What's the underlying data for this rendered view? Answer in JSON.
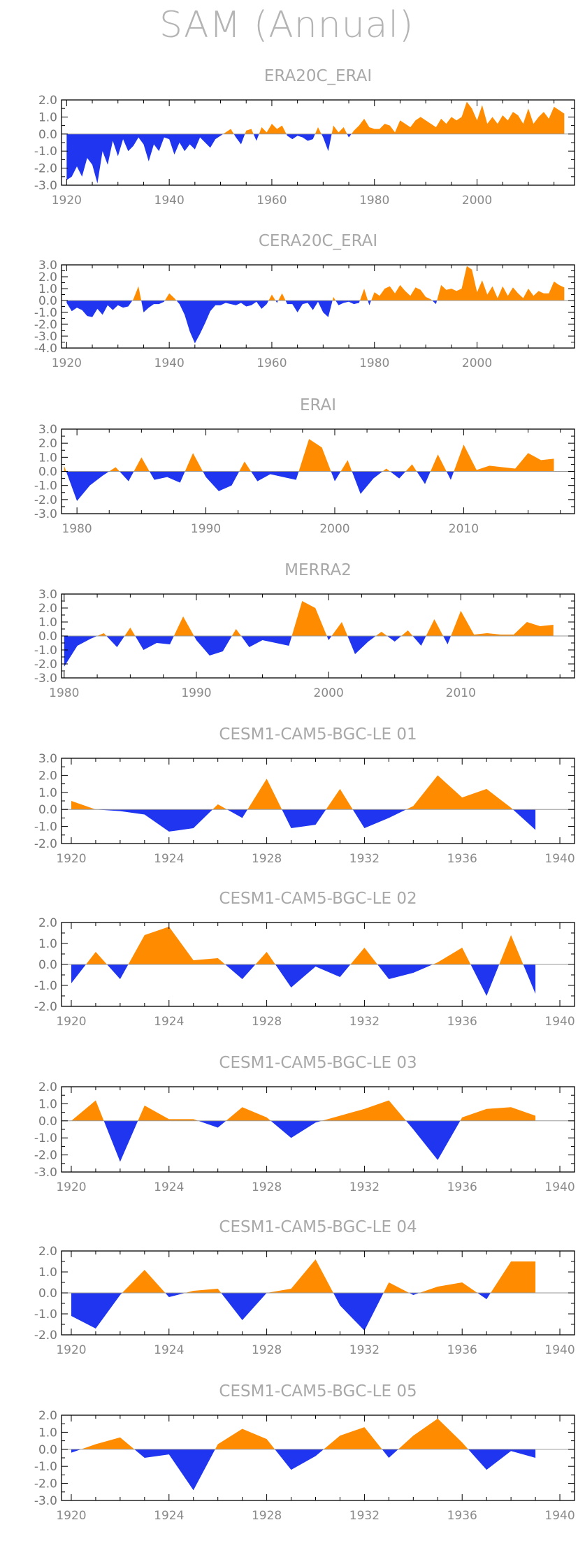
{
  "title": "SAM (Annual)",
  "colors": {
    "positive": "#ff8c00",
    "negative": "#1f35f0",
    "frame": "#000000",
    "zero_line": "#9a9a9a",
    "text": "#a8a8a8"
  },
  "chart_data": [
    {
      "type": "area",
      "title": "ERA20C_ERAI",
      "xlim": [
        1919,
        2019
      ],
      "ylim": [
        -3,
        2
      ],
      "yticks": [
        2.0,
        1.0,
        0.0,
        -1.0,
        -2.0,
        -3.0
      ],
      "ytick_labels": [
        "2.0",
        "1.0",
        "0.0",
        "-1.0",
        "-2.0",
        "-3.0"
      ],
      "xticks": [
        1920,
        1940,
        1960,
        1980,
        2000
      ],
      "xtick_labels": [
        "1920",
        "1940",
        "1960",
        "1980",
        "2000"
      ],
      "x": [
        1920,
        1921,
        1922,
        1923,
        1924,
        1925,
        1926,
        1927,
        1928,
        1929,
        1930,
        1931,
        1932,
        1933,
        1934,
        1935,
        1936,
        1937,
        1938,
        1939,
        1940,
        1941,
        1942,
        1943,
        1944,
        1945,
        1946,
        1947,
        1948,
        1949,
        1950,
        1951,
        1952,
        1953,
        1954,
        1955,
        1956,
        1957,
        1958,
        1959,
        1960,
        1961,
        1962,
        1963,
        1964,
        1965,
        1966,
        1967,
        1968,
        1969,
        1970,
        1971,
        1972,
        1973,
        1974,
        1975,
        1976,
        1977,
        1978,
        1979,
        1980,
        1981,
        1982,
        1983,
        1984,
        1985,
        1986,
        1987,
        1988,
        1989,
        1990,
        1991,
        1992,
        1993,
        1994,
        1995,
        1996,
        1997,
        1998,
        1999,
        2000,
        2001,
        2002,
        2003,
        2004,
        2005,
        2006,
        2007,
        2008,
        2009,
        2010,
        2011,
        2012,
        2013,
        2014,
        2015,
        2016,
        2017
      ],
      "y": [
        -2.7,
        -2.5,
        -1.9,
        -2.5,
        -1.4,
        -1.8,
        -2.9,
        -1.0,
        -1.8,
        -0.4,
        -1.3,
        -0.3,
        -1.0,
        -0.7,
        -0.2,
        -0.6,
        -1.6,
        -0.6,
        -1.0,
        -0.2,
        -0.3,
        -1.2,
        -0.5,
        -1.0,
        -0.6,
        -0.9,
        -0.2,
        -0.5,
        -0.8,
        -0.3,
        -0.1,
        0.1,
        0.3,
        -0.2,
        -0.6,
        0.2,
        0.3,
        -0.4,
        0.4,
        0.1,
        0.6,
        0.3,
        0.5,
        -0.1,
        -0.3,
        -0.1,
        -0.2,
        -0.4,
        -0.3,
        0.4,
        -0.2,
        -1.0,
        0.5,
        0.1,
        0.4,
        -0.2,
        0.2,
        0.5,
        0.9,
        0.4,
        0.3,
        0.3,
        0.6,
        0.5,
        0.1,
        0.8,
        0.6,
        0.4,
        0.8,
        1.0,
        0.8,
        0.6,
        0.4,
        0.9,
        0.6,
        1.0,
        0.8,
        1.0,
        1.9,
        1.5,
        0.8,
        1.7,
        0.6,
        1.0,
        0.6,
        1.1,
        0.8,
        1.3,
        1.1,
        0.6,
        1.5,
        0.6,
        1.0,
        1.3,
        0.9,
        1.6,
        1.4,
        1.2
      ]
    },
    {
      "type": "area",
      "title": "CERA20C_ERAI",
      "xlim": [
        1919,
        2019
      ],
      "ylim": [
        -4,
        3
      ],
      "yticks": [
        3.0,
        2.0,
        1.0,
        0.0,
        -1.0,
        -2.0,
        -3.0,
        -4.0
      ],
      "ytick_labels": [
        "3.0",
        "2.0",
        "1.0",
        "0.0",
        "-1.0",
        "-2.0",
        "-3.0",
        "-4.0"
      ],
      "xticks": [
        1920,
        1940,
        1960,
        1980,
        2000
      ],
      "xtick_labels": [
        "1920",
        "1940",
        "1960",
        "1980",
        "2000"
      ],
      "x": [
        1920,
        1921,
        1922,
        1923,
        1924,
        1925,
        1926,
        1927,
        1928,
        1929,
        1930,
        1931,
        1932,
        1933,
        1934,
        1935,
        1936,
        1937,
        1938,
        1939,
        1940,
        1941,
        1942,
        1943,
        1944,
        1945,
        1946,
        1947,
        1948,
        1949,
        1950,
        1951,
        1952,
        1953,
        1954,
        1955,
        1956,
        1957,
        1958,
        1959,
        1960,
        1961,
        1962,
        1963,
        1964,
        1965,
        1966,
        1967,
        1968,
        1969,
        1970,
        1971,
        1972,
        1973,
        1974,
        1975,
        1976,
        1977,
        1978,
        1979,
        1980,
        1981,
        1982,
        1983,
        1984,
        1985,
        1986,
        1987,
        1988,
        1989,
        1990,
        1991,
        1992,
        1993,
        1994,
        1995,
        1996,
        1997,
        1998,
        1999,
        2000,
        2001,
        2002,
        2003,
        2004,
        2005,
        2006,
        2007,
        2008,
        2009,
        2010,
        2011,
        2012,
        2013,
        2014,
        2015,
        2016,
        2017
      ],
      "y": [
        -0.2,
        -0.9,
        -0.6,
        -0.8,
        -1.3,
        -1.4,
        -0.7,
        -1.2,
        -0.4,
        -0.8,
        -0.4,
        -0.6,
        -0.5,
        0.1,
        1.2,
        -1.0,
        -0.6,
        -0.3,
        -0.3,
        -0.1,
        0.6,
        0.2,
        -0.3,
        -1.2,
        -2.6,
        -3.6,
        -2.8,
        -1.9,
        -0.9,
        -0.4,
        -0.4,
        -0.2,
        -0.3,
        -0.4,
        -0.2,
        -0.5,
        -0.4,
        -0.1,
        -0.7,
        -0.3,
        0.5,
        -0.2,
        0.6,
        -0.3,
        -0.3,
        -1.0,
        -0.3,
        -0.2,
        -0.8,
        -0.1,
        -1.0,
        -1.4,
        0.3,
        -0.4,
        -0.2,
        -0.1,
        -0.3,
        -0.2,
        1.0,
        -0.4,
        0.7,
        0.4,
        1.0,
        1.2,
        0.6,
        1.3,
        0.8,
        0.4,
        1.1,
        0.9,
        0.3,
        0.1,
        -0.3,
        1.3,
        0.9,
        1.0,
        0.8,
        1.0,
        2.9,
        2.6,
        0.7,
        1.7,
        0.5,
        1.2,
        0.2,
        1.2,
        0.4,
        1.1,
        0.6,
        0.2,
        1.0,
        0.4,
        0.8,
        0.6,
        0.6,
        1.6,
        1.3,
        1.1
      ]
    },
    {
      "type": "area",
      "title": "ERAI",
      "xlim": [
        1978.8,
        2018.6
      ],
      "ylim": [
        -3,
        3
      ],
      "yticks": [
        3.0,
        2.0,
        1.0,
        0.0,
        -1.0,
        -2.0,
        -3.0
      ],
      "ytick_labels": [
        "3.0",
        "2.0",
        "1.0",
        "0.0",
        "-1.0",
        "-2.0",
        "-3.0"
      ],
      "xticks": [
        1980,
        1990,
        2000,
        2010
      ],
      "xtick_labels": [
        "1980",
        "1990",
        "2000",
        "2010"
      ],
      "x": [
        1979,
        1980,
        1981,
        1982,
        1983,
        1984,
        1985,
        1986,
        1987,
        1988,
        1989,
        1990,
        1991,
        1992,
        1993,
        1994,
        1995,
        1996,
        1997,
        1998,
        1999,
        2000,
        2001,
        2002,
        2003,
        2004,
        2005,
        2006,
        2007,
        2008,
        2009,
        2010,
        2011,
        2012,
        2013,
        2014,
        2015,
        2016,
        2017
      ],
      "y": [
        0.4,
        -2.1,
        -1.0,
        -0.3,
        0.3,
        -0.7,
        1.0,
        -0.6,
        -0.4,
        -0.8,
        1.3,
        -0.4,
        -1.4,
        -1.0,
        0.7,
        -0.7,
        -0.2,
        -0.4,
        -0.6,
        2.3,
        1.7,
        -0.7,
        0.8,
        -1.6,
        -0.5,
        0.2,
        -0.5,
        0.5,
        -0.9,
        1.2,
        -0.6,
        1.9,
        0.1,
        0.4,
        0.3,
        0.2,
        1.3,
        0.8,
        0.9
      ]
    },
    {
      "type": "area",
      "title": "MERRA2",
      "xlim": [
        1979.8,
        2018.6
      ],
      "ylim": [
        -3,
        3
      ],
      "yticks": [
        3.0,
        2.0,
        1.0,
        0.0,
        -1.0,
        -2.0,
        -3.0
      ],
      "ytick_labels": [
        "3.0",
        "2.0",
        "1.0",
        "0.0",
        "-1.0",
        "-2.0",
        "-3.0"
      ],
      "xticks": [
        1980,
        1990,
        2000,
        2010
      ],
      "xtick_labels": [
        "1980",
        "1990",
        "2000",
        "2010"
      ],
      "x": [
        1980,
        1981,
        1982,
        1983,
        1984,
        1985,
        1986,
        1987,
        1988,
        1989,
        1990,
        1991,
        1992,
        1993,
        1994,
        1995,
        1996,
        1997,
        1998,
        1999,
        2000,
        2001,
        2002,
        2003,
        2004,
        2005,
        2006,
        2007,
        2008,
        2009,
        2010,
        2011,
        2012,
        2013,
        2014,
        2015,
        2016,
        2017
      ],
      "y": [
        -2.2,
        -0.7,
        -0.2,
        0.2,
        -0.8,
        0.6,
        -1.0,
        -0.5,
        -0.6,
        1.4,
        -0.3,
        -1.4,
        -1.1,
        0.5,
        -0.8,
        -0.3,
        -0.5,
        -0.7,
        2.5,
        2.0,
        -0.3,
        1.0,
        -1.3,
        -0.4,
        0.3,
        -0.4,
        0.4,
        -0.7,
        1.2,
        -0.6,
        1.8,
        0.1,
        0.2,
        0.1,
        0.1,
        1.0,
        0.7,
        0.8
      ]
    },
    {
      "type": "area",
      "title": "CESM1-CAM5-BGC-LE 01",
      "xlim": [
        1919.6,
        1940.6
      ],
      "ylim": [
        -2,
        3
      ],
      "yticks": [
        3.0,
        2.0,
        1.0,
        0.0,
        -1.0,
        -2.0
      ],
      "ytick_labels": [
        "3.0",
        "2.0",
        "1.0",
        "0.0",
        "-1.0",
        "-2.0"
      ],
      "xticks": [
        1920,
        1924,
        1928,
        1932,
        1936,
        1940
      ],
      "xtick_labels": [
        "1920",
        "1924",
        "1928",
        "1932",
        "1936",
        "1940"
      ],
      "x": [
        1920,
        1921,
        1922,
        1923,
        1924,
        1925,
        1926,
        1927,
        1928,
        1929,
        1930,
        1931,
        1932,
        1933,
        1934,
        1935,
        1936,
        1937,
        1938,
        1939
      ],
      "y": [
        0.5,
        0.0,
        -0.1,
        -0.3,
        -1.3,
        -1.1,
        0.3,
        -0.5,
        1.8,
        -1.1,
        -0.9,
        1.2,
        -1.1,
        -0.5,
        0.2,
        2.0,
        0.7,
        1.2,
        0.1,
        -1.2
      ]
    },
    {
      "type": "area",
      "title": "CESM1-CAM5-BGC-LE 02",
      "xlim": [
        1919.6,
        1940.6
      ],
      "ylim": [
        -2,
        2
      ],
      "yticks": [
        2.0,
        1.0,
        0.0,
        -1.0,
        -2.0
      ],
      "ytick_labels": [
        "2.0",
        "1.0",
        "0.0",
        "-1.0",
        "-2.0"
      ],
      "xticks": [
        1920,
        1924,
        1928,
        1932,
        1936,
        1940
      ],
      "xtick_labels": [
        "1920",
        "1924",
        "1928",
        "1932",
        "1936",
        "1940"
      ],
      "x": [
        1920,
        1921,
        1922,
        1923,
        1924,
        1925,
        1926,
        1927,
        1928,
        1929,
        1930,
        1931,
        1932,
        1933,
        1934,
        1935,
        1936,
        1937,
        1938,
        1939
      ],
      "y": [
        -0.9,
        0.6,
        -0.7,
        1.4,
        1.8,
        0.2,
        0.3,
        -0.7,
        0.6,
        -1.1,
        -0.1,
        -0.6,
        0.8,
        -0.7,
        -0.4,
        0.1,
        0.8,
        -1.5,
        1.4,
        -1.4
      ]
    },
    {
      "type": "area",
      "title": "CESM1-CAM5-BGC-LE 03",
      "xlim": [
        1919.6,
        1940.6
      ],
      "ylim": [
        -3,
        2
      ],
      "yticks": [
        2.0,
        1.0,
        0.0,
        -1.0,
        -2.0,
        -3.0
      ],
      "ytick_labels": [
        "2.0",
        "1.0",
        "0.0",
        "-1.0",
        "-2.0",
        "-3.0"
      ],
      "xticks": [
        1920,
        1924,
        1928,
        1932,
        1936,
        1940
      ],
      "xtick_labels": [
        "1920",
        "1924",
        "1928",
        "1932",
        "1936",
        "1940"
      ],
      "x": [
        1920,
        1921,
        1922,
        1923,
        1924,
        1925,
        1926,
        1927,
        1928,
        1929,
        1930,
        1931,
        1932,
        1933,
        1934,
        1935,
        1936,
        1937,
        1938,
        1939
      ],
      "y": [
        0.0,
        1.2,
        -2.4,
        0.9,
        0.1,
        0.1,
        -0.4,
        0.8,
        0.2,
        -1.0,
        -0.1,
        0.3,
        0.7,
        1.2,
        -0.5,
        -2.3,
        0.2,
        0.7,
        0.8,
        0.3
      ]
    },
    {
      "type": "area",
      "title": "CESM1-CAM5-BGC-LE 04",
      "xlim": [
        1919.6,
        1940.6
      ],
      "ylim": [
        -2,
        2
      ],
      "yticks": [
        2.0,
        1.0,
        0.0,
        -1.0,
        -2.0
      ],
      "ytick_labels": [
        "2.0",
        "1.0",
        "0.0",
        "-1.0",
        "-2.0"
      ],
      "xticks": [
        1920,
        1924,
        1928,
        1932,
        1936,
        1940
      ],
      "xtick_labels": [
        "1920",
        "1924",
        "1928",
        "1932",
        "1936",
        "1940"
      ],
      "x": [
        1920,
        1921,
        1922,
        1923,
        1924,
        1925,
        1926,
        1927,
        1928,
        1929,
        1930,
        1931,
        1932,
        1933,
        1934,
        1935,
        1936,
        1937,
        1938,
        1939
      ],
      "y": [
        -1.1,
        -1.7,
        -0.1,
        1.1,
        -0.2,
        0.1,
        0.2,
        -1.3,
        0.0,
        0.2,
        1.6,
        -0.6,
        -1.8,
        0.5,
        -0.1,
        0.3,
        0.5,
        -0.3,
        1.5,
        1.5
      ]
    },
    {
      "type": "area",
      "title": "CESM1-CAM5-BGC-LE 05",
      "xlim": [
        1919.6,
        1940.6
      ],
      "ylim": [
        -3,
        2
      ],
      "yticks": [
        2.0,
        1.0,
        0.0,
        -1.0,
        -2.0,
        -3.0
      ],
      "ytick_labels": [
        "2.0",
        "1.0",
        "0.0",
        "-1.0",
        "-2.0",
        "-3.0"
      ],
      "xticks": [
        1920,
        1924,
        1928,
        1932,
        1936,
        1940
      ],
      "xtick_labels": [
        "1920",
        "1924",
        "1928",
        "1932",
        "1936",
        "1940"
      ],
      "x": [
        1920,
        1921,
        1922,
        1923,
        1924,
        1925,
        1926,
        1927,
        1928,
        1929,
        1930,
        1931,
        1932,
        1933,
        1934,
        1935,
        1936,
        1937,
        1938,
        1939
      ],
      "y": [
        -0.2,
        0.3,
        0.7,
        -0.5,
        -0.3,
        -2.4,
        0.3,
        1.2,
        0.6,
        -1.2,
        -0.4,
        0.8,
        1.3,
        -0.5,
        0.8,
        1.8,
        0.4,
        -1.2,
        -0.1,
        -0.5
      ]
    }
  ]
}
